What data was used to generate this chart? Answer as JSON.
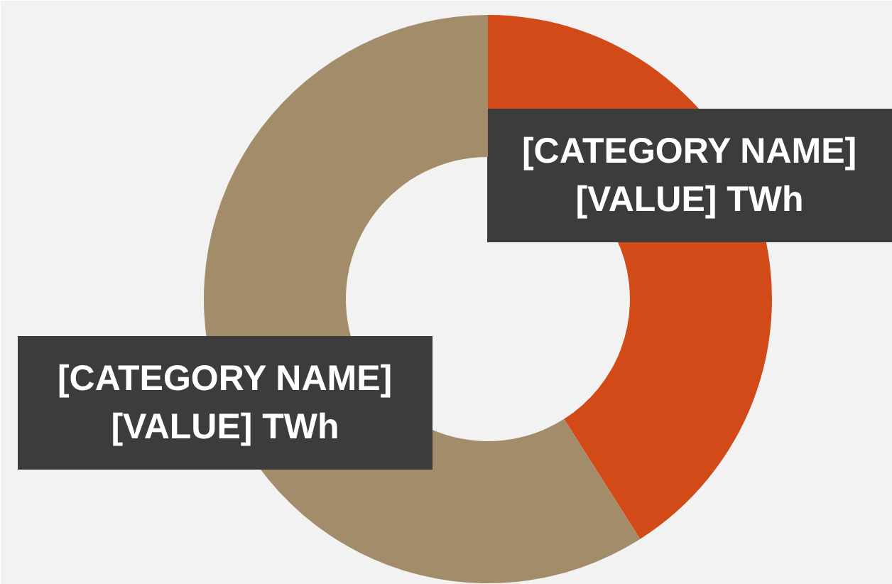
{
  "chart_data": {
    "type": "donut",
    "categories": [
      "[CATEGORY NAME]",
      "[CATEGORY NAME]"
    ],
    "values": [
      41,
      59
    ],
    "colors": [
      "#d24a17",
      "#a38c6a"
    ],
    "value_labels": [
      "[VALUE] TWh",
      "[VALUE] TWh"
    ]
  }
}
